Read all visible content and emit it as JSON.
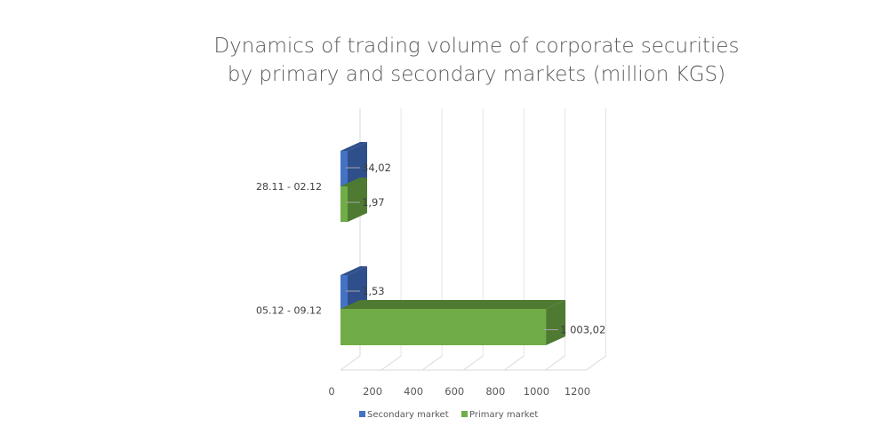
{
  "chart_data": {
    "type": "bar",
    "orientation": "horizontal",
    "style": "3d-clustered",
    "title_lines": [
      "Dynamics of trading volume of corporate securities",
      "by primary and secondary markets (million KGS)"
    ],
    "categories": [
      "28.11 - 02.12",
      "05.12 - 09.12"
    ],
    "series": [
      {
        "name": "Secondary market",
        "values": [
          34.02,
          1.53
        ],
        "labels": [
          "34,02",
          "1,53"
        ],
        "color": "#4472C4",
        "color_dark": "#2F4F8C"
      },
      {
        "name": "Primary market",
        "values": [
          1.97,
          1003.02
        ],
        "labels": [
          "1,97",
          "1 003,02"
        ],
        "color": "#70AD47",
        "color_dark": "#4E7A31"
      }
    ],
    "x_ticks": [
      0,
      200,
      400,
      600,
      800,
      1000,
      1200
    ],
    "xlim": [
      0,
      1200
    ],
    "grid": true,
    "legend_position": "bottom",
    "xlabel": "",
    "ylabel": ""
  }
}
